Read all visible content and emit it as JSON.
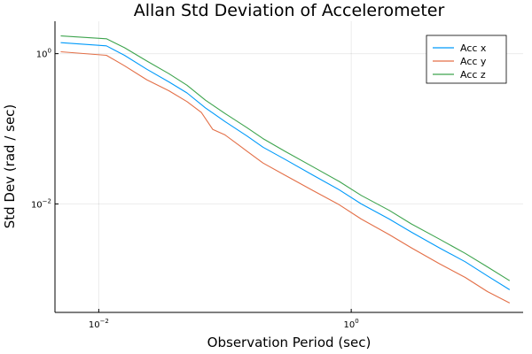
{
  "chart_data": {
    "type": "line",
    "title": "Allan Std Deviation of Accelerometer",
    "xlabel": "Observation Period (sec)",
    "ylabel": "Std Dev (rad / sec)",
    "xscale": "log",
    "yscale": "log",
    "xlim": [
      0.0045,
      23
    ],
    "ylim": [
      0.00036,
      2.7
    ],
    "xticks": [
      {
        "value": 0.01,
        "base": "10",
        "exp": "−2"
      },
      {
        "value": 1,
        "base": "10",
        "exp": "0"
      }
    ],
    "yticks": [
      {
        "value": 0.01,
        "base": "10",
        "exp": "−2"
      },
      {
        "value": 1,
        "base": "10",
        "exp": "0"
      }
    ],
    "grid": true,
    "legend_position": "top-right",
    "series": [
      {
        "name": "Acc x",
        "color": "#009AFA",
        "points": [
          [
            0.005,
            1.4
          ],
          [
            0.0115,
            1.27
          ],
          [
            0.016,
            0.95
          ],
          [
            0.024,
            0.62
          ],
          [
            0.036,
            0.42
          ],
          [
            0.05,
            0.3
          ],
          [
            0.07,
            0.19
          ],
          [
            0.1,
            0.125
          ],
          [
            0.15,
            0.08
          ],
          [
            0.2,
            0.057
          ],
          [
            0.3,
            0.039
          ],
          [
            0.5,
            0.024
          ],
          [
            0.8,
            0.0155
          ],
          [
            1.2,
            0.01
          ],
          [
            2,
            0.0063
          ],
          [
            3,
            0.0042
          ],
          [
            5,
            0.0026
          ],
          [
            8,
            0.0017
          ],
          [
            12,
            0.0011
          ],
          [
            18,
            0.00072
          ]
        ]
      },
      {
        "name": "Acc y",
        "color": "#E36F47",
        "points": [
          [
            0.005,
            1.06
          ],
          [
            0.0115,
            0.95
          ],
          [
            0.016,
            0.69
          ],
          [
            0.024,
            0.45
          ],
          [
            0.036,
            0.32
          ],
          [
            0.05,
            0.23
          ],
          [
            0.065,
            0.165
          ],
          [
            0.08,
            0.098
          ],
          [
            0.1,
            0.083
          ],
          [
            0.13,
            0.06
          ],
          [
            0.15,
            0.05
          ],
          [
            0.2,
            0.035
          ],
          [
            0.3,
            0.024
          ],
          [
            0.5,
            0.015
          ],
          [
            0.8,
            0.0098
          ],
          [
            1.2,
            0.0063
          ],
          [
            2,
            0.0039
          ],
          [
            3,
            0.0026
          ],
          [
            5,
            0.0016
          ],
          [
            8,
            0.00105
          ],
          [
            12,
            0.00068
          ],
          [
            18,
            0.00048
          ]
        ]
      },
      {
        "name": "Acc z",
        "color": "#3EA44E",
        "points": [
          [
            0.005,
            1.72
          ],
          [
            0.0115,
            1.58
          ],
          [
            0.016,
            1.2
          ],
          [
            0.024,
            0.8
          ],
          [
            0.036,
            0.54
          ],
          [
            0.05,
            0.38
          ],
          [
            0.07,
            0.24
          ],
          [
            0.1,
            0.16
          ],
          [
            0.15,
            0.103
          ],
          [
            0.2,
            0.074
          ],
          [
            0.3,
            0.05
          ],
          [
            0.5,
            0.031
          ],
          [
            0.8,
            0.02
          ],
          [
            1.2,
            0.013
          ],
          [
            2,
            0.0082
          ],
          [
            3,
            0.0054
          ],
          [
            5,
            0.0034
          ],
          [
            8,
            0.0022
          ],
          [
            12,
            0.00145
          ],
          [
            18,
            0.00095
          ]
        ]
      }
    ]
  }
}
